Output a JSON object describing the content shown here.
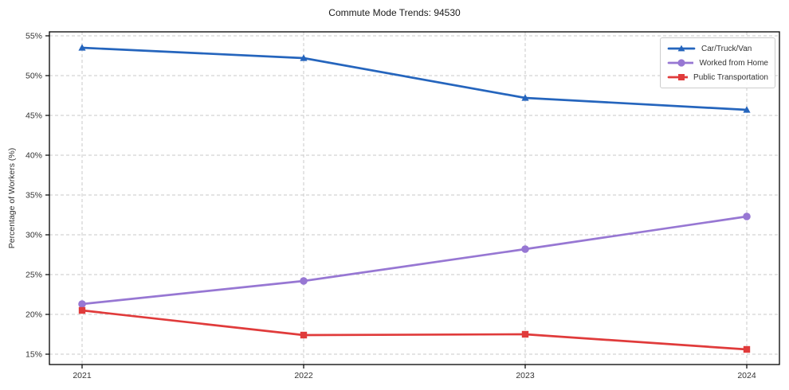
{
  "chart_data": {
    "type": "line",
    "title": "Commute Mode Trends: 94530",
    "xlabel": "",
    "ylabel": "Percentage of Workers (%)",
    "categories": [
      "2021",
      "2022",
      "2023",
      "2024"
    ],
    "series": [
      {
        "name": "Car/Truck/Van",
        "color": "#2565bd",
        "marker": "triangle",
        "values": [
          53.5,
          52.2,
          47.2,
          45.7
        ]
      },
      {
        "name": "Worked from Home",
        "color": "#9777d3",
        "marker": "circle",
        "values": [
          21.3,
          24.2,
          28.2,
          32.3
        ]
      },
      {
        "name": "Public Transportation",
        "color": "#e03b3b",
        "marker": "square",
        "values": [
          20.5,
          17.4,
          17.5,
          15.6
        ]
      }
    ],
    "ylim": [
      13.7,
      55.5
    ],
    "yticks": [
      15,
      20,
      25,
      30,
      35,
      40,
      45,
      50,
      55
    ],
    "ytick_suffix": "%",
    "grid": true,
    "grid_color": "#c9c9c9",
    "axis_color": "#000000",
    "tick_label_color": "#333333",
    "legend_position": "upper right"
  }
}
